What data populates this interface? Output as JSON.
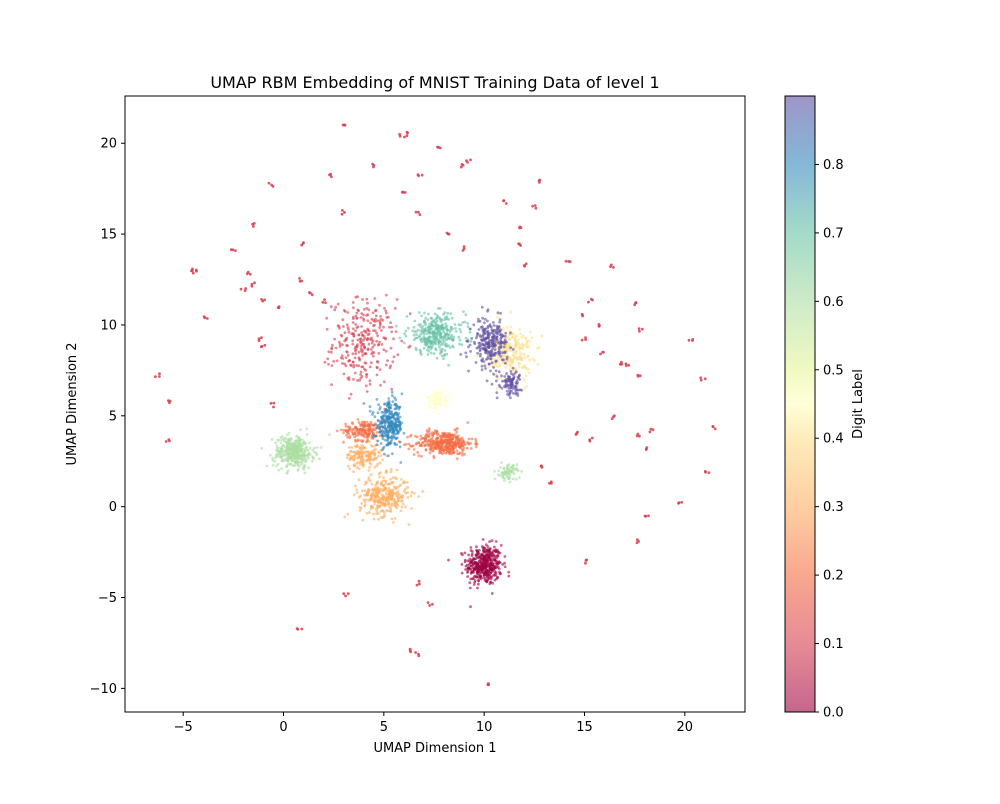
{
  "chart_data": {
    "type": "scatter",
    "title": "UMAP RBM Embedding of MNIST Training Data of level 1",
    "xlabel": "UMAP Dimension 1",
    "ylabel": "UMAP Dimension 2",
    "xlim": [
      -7.9,
      23.0
    ],
    "ylim": [
      -11.3,
      22.6
    ],
    "xticks": [
      -5,
      0,
      5,
      10,
      15,
      20
    ],
    "yticks": [
      -10,
      -5,
      0,
      5,
      10,
      15,
      20
    ],
    "xtick_labels": [
      "−5",
      "0",
      "5",
      "10",
      "15",
      "20"
    ],
    "ytick_labels": [
      "−10",
      "−5",
      "0",
      "5",
      "10",
      "15",
      "20"
    ],
    "grid": false,
    "colormap": "Spectral",
    "point_alpha": 0.6,
    "colorbar": {
      "label": "Digit Label",
      "range": [
        0.0,
        0.9
      ],
      "ticks": [
        0.0,
        0.1,
        0.2,
        0.3,
        0.4,
        0.5,
        0.6,
        0.7,
        0.8
      ],
      "tick_labels": [
        "0.0",
        "0.1",
        "0.2",
        "0.3",
        "0.4",
        "0.5",
        "0.6",
        "0.7",
        "0.8"
      ]
    },
    "clusters": [
      {
        "label": 0.0,
        "color": "#9e0142",
        "center": [
          10.0,
          -3.2
        ],
        "spread": [
          0.8,
          1.0
        ],
        "count": 420
      },
      {
        "label": 0.1,
        "color": "#d53e4f",
        "center": [
          4.0,
          9.0
        ],
        "spread": [
          1.4,
          2.2
        ],
        "count": 280
      },
      {
        "label": 0.2,
        "color": "#f46d43",
        "center": [
          8.0,
          3.5
        ],
        "spread": [
          1.3,
          0.6
        ],
        "count": 380
      },
      {
        "label": 0.2,
        "color": "#f46d43",
        "center": [
          4.0,
          4.2
        ],
        "spread": [
          0.9,
          0.5
        ],
        "count": 160
      },
      {
        "label": 0.3,
        "color": "#fdae61",
        "center": [
          5.0,
          0.6
        ],
        "spread": [
          1.1,
          1.0
        ],
        "count": 320
      },
      {
        "label": 0.3,
        "color": "#fdae61",
        "center": [
          4.0,
          2.8
        ],
        "spread": [
          0.8,
          0.6
        ],
        "count": 150
      },
      {
        "label": 0.4,
        "color": "#fee08b",
        "center": [
          11.3,
          8.5
        ],
        "spread": [
          1.0,
          1.4
        ],
        "count": 260
      },
      {
        "label": 0.45,
        "color": "#ffffbf",
        "center": [
          7.7,
          5.9
        ],
        "spread": [
          0.5,
          0.5
        ],
        "count": 70
      },
      {
        "label": 0.6,
        "color": "#abdda4",
        "center": [
          0.5,
          3.0
        ],
        "spread": [
          0.9,
          0.8
        ],
        "count": 380
      },
      {
        "label": 0.6,
        "color": "#abdda4",
        "center": [
          11.2,
          1.9
        ],
        "spread": [
          0.4,
          0.4
        ],
        "count": 70
      },
      {
        "label": 0.7,
        "color": "#66c2a5",
        "center": [
          7.6,
          9.5
        ],
        "spread": [
          1.3,
          1.0
        ],
        "count": 320
      },
      {
        "label": 0.8,
        "color": "#3288bd",
        "center": [
          5.3,
          4.5
        ],
        "spread": [
          0.6,
          1.1
        ],
        "count": 300
      },
      {
        "label": 0.9,
        "color": "#5e4fa2",
        "center": [
          10.3,
          9.0
        ],
        "spread": [
          0.8,
          1.2
        ],
        "count": 260
      },
      {
        "label": 0.9,
        "color": "#5e4fa2",
        "center": [
          11.3,
          6.8
        ],
        "spread": [
          0.5,
          0.6
        ],
        "count": 90
      }
    ],
    "outliers": {
      "label": 0.1,
      "color": "#d53e4f",
      "points": [
        [
          3.0,
          21.0
        ],
        [
          5.9,
          20.4
        ],
        [
          6.1,
          20.5
        ],
        [
          7.8,
          19.8
        ],
        [
          9.2,
          19.0
        ],
        [
          8.9,
          18.8
        ],
        [
          4.4,
          18.8
        ],
        [
          6.8,
          18.2
        ],
        [
          2.3,
          18.2
        ],
        [
          -0.6,
          17.7
        ],
        [
          12.7,
          17.9
        ],
        [
          6.0,
          17.3
        ],
        [
          11.0,
          16.8
        ],
        [
          12.5,
          16.5
        ],
        [
          6.7,
          16.1
        ],
        [
          3.0,
          16.2
        ],
        [
          11.8,
          15.3
        ],
        [
          -1.5,
          15.5
        ],
        [
          8.2,
          15.0
        ],
        [
          -2.5,
          14.2
        ],
        [
          1.0,
          14.5
        ],
        [
          11.7,
          14.4
        ],
        [
          9.0,
          14.2
        ],
        [
          14.2,
          13.4
        ],
        [
          16.4,
          13.2
        ],
        [
          12.0,
          13.3
        ],
        [
          -4.5,
          13.0
        ],
        [
          -1.7,
          12.8
        ],
        [
          -1.5,
          12.2
        ],
        [
          0.8,
          12.5
        ],
        [
          -0.3,
          11.0
        ],
        [
          1.4,
          11.7
        ],
        [
          2.0,
          11.3
        ],
        [
          -1.0,
          11.4
        ],
        [
          -3.9,
          10.4
        ],
        [
          15.3,
          11.3
        ],
        [
          17.5,
          11.1
        ],
        [
          15.0,
          10.5
        ],
        [
          15.8,
          10.0
        ],
        [
          17.8,
          9.7
        ],
        [
          -1.2,
          9.2
        ],
        [
          -1.0,
          8.8
        ],
        [
          15.0,
          9.2
        ],
        [
          20.3,
          9.1
        ],
        [
          15.9,
          8.4
        ],
        [
          16.8,
          7.9
        ],
        [
          17.1,
          7.8
        ],
        [
          17.7,
          7.3
        ],
        [
          -6.3,
          7.2
        ],
        [
          20.9,
          7.0
        ],
        [
          -5.7,
          5.8
        ],
        [
          -0.6,
          5.6
        ],
        [
          16.5,
          4.9
        ],
        [
          18.3,
          4.2
        ],
        [
          21.5,
          4.3
        ],
        [
          14.7,
          4.0
        ],
        [
          15.3,
          3.7
        ],
        [
          17.7,
          3.9
        ],
        [
          -5.8,
          3.6
        ],
        [
          18.0,
          3.2
        ],
        [
          21.1,
          2.0
        ],
        [
          12.9,
          2.2
        ],
        [
          13.3,
          1.4
        ],
        [
          19.8,
          0.3
        ],
        [
          18.1,
          -0.5
        ],
        [
          17.6,
          -1.9
        ],
        [
          15.1,
          -3.0
        ],
        [
          6.7,
          -4.2
        ],
        [
          3.1,
          -4.9
        ],
        [
          7.3,
          -5.4
        ],
        [
          0.8,
          -6.8
        ],
        [
          6.3,
          -7.9
        ],
        [
          6.7,
          -8.1
        ],
        [
          10.3,
          -9.8
        ],
        [
          -4.4,
          12.9
        ],
        [
          -2.0,
          11.9
        ]
      ]
    }
  }
}
